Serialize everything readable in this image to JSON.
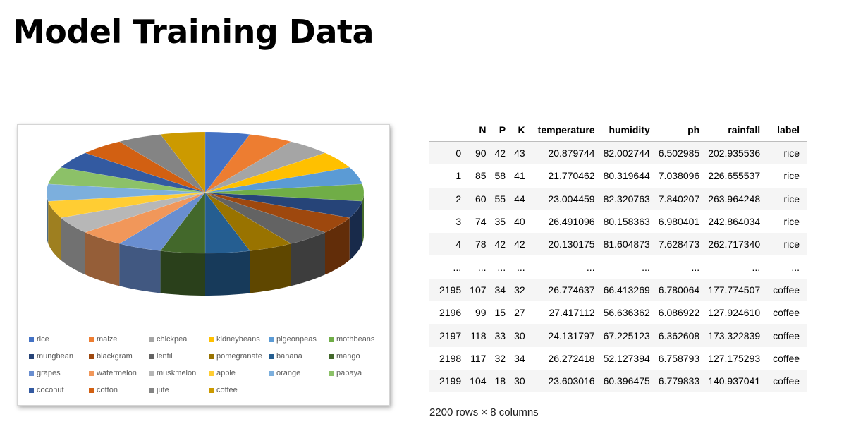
{
  "page": {
    "title": "Model Training Data"
  },
  "legend": {
    "items": [
      {
        "label": "rice",
        "color": "#4472c4"
      },
      {
        "label": "maize",
        "color": "#ed7d31"
      },
      {
        "label": "chickpea",
        "color": "#a5a5a5"
      },
      {
        "label": "kidneybeans",
        "color": "#ffc000"
      },
      {
        "label": "pigeonpeas",
        "color": "#5b9bd5"
      },
      {
        "label": "mothbeans",
        "color": "#70ad47"
      },
      {
        "label": "mungbean",
        "color": "#264478"
      },
      {
        "label": "blackgram",
        "color": "#9e480e"
      },
      {
        "label": "lentil",
        "color": "#636363"
      },
      {
        "label": "pomegranate",
        "color": "#997300"
      },
      {
        "label": "banana",
        "color": "#255e91"
      },
      {
        "label": "mango",
        "color": "#43682b"
      },
      {
        "label": "grapes",
        "color": "#698ed0"
      },
      {
        "label": "watermelon",
        "color": "#f1975a"
      },
      {
        "label": "muskmelon",
        "color": "#b7b7b7"
      },
      {
        "label": "apple",
        "color": "#ffcd33"
      },
      {
        "label": "orange",
        "color": "#7cafdd"
      },
      {
        "label": "papaya",
        "color": "#8cc168"
      },
      {
        "label": "coconut",
        "color": "#335aa1"
      },
      {
        "label": "cotton",
        "color": "#d26012"
      },
      {
        "label": "jute",
        "color": "#848484"
      },
      {
        "label": "coffee",
        "color": "#cc9a00"
      }
    ]
  },
  "chart_data": {
    "type": "pie",
    "style": "3d",
    "categories": [
      "rice",
      "maize",
      "chickpea",
      "kidneybeans",
      "pigeonpeas",
      "mothbeans",
      "mungbean",
      "blackgram",
      "lentil",
      "pomegranate",
      "banana",
      "mango",
      "grapes",
      "watermelon",
      "muskmelon",
      "apple",
      "orange",
      "papaya",
      "coconut",
      "cotton",
      "jute",
      "coffee"
    ],
    "values": [
      100,
      100,
      100,
      100,
      100,
      100,
      100,
      100,
      100,
      100,
      100,
      100,
      100,
      100,
      100,
      100,
      100,
      100,
      100,
      100,
      100,
      100
    ],
    "legend_position": "bottom",
    "title": ""
  },
  "table": {
    "columns": [
      "",
      "N",
      "P",
      "K",
      "temperature",
      "humidity",
      "ph",
      "rainfall",
      "label"
    ],
    "rows": [
      [
        "0",
        "90",
        "42",
        "43",
        "20.879744",
        "82.002744",
        "6.502985",
        "202.935536",
        "rice"
      ],
      [
        "1",
        "85",
        "58",
        "41",
        "21.770462",
        "80.319644",
        "7.038096",
        "226.655537",
        "rice"
      ],
      [
        "2",
        "60",
        "55",
        "44",
        "23.004459",
        "82.320763",
        "7.840207",
        "263.964248",
        "rice"
      ],
      [
        "3",
        "74",
        "35",
        "40",
        "26.491096",
        "80.158363",
        "6.980401",
        "242.864034",
        "rice"
      ],
      [
        "4",
        "78",
        "42",
        "42",
        "20.130175",
        "81.604873",
        "7.628473",
        "262.717340",
        "rice"
      ],
      [
        "...",
        "...",
        "...",
        "...",
        "...",
        "...",
        "...",
        "...",
        "..."
      ],
      [
        "2195",
        "107",
        "34",
        "32",
        "26.774637",
        "66.413269",
        "6.780064",
        "177.774507",
        "coffee"
      ],
      [
        "2196",
        "99",
        "15",
        "27",
        "27.417112",
        "56.636362",
        "6.086922",
        "127.924610",
        "coffee"
      ],
      [
        "2197",
        "118",
        "33",
        "30",
        "24.131797",
        "67.225123",
        "6.362608",
        "173.322839",
        "coffee"
      ],
      [
        "2198",
        "117",
        "32",
        "34",
        "26.272418",
        "52.127394",
        "6.758793",
        "127.175293",
        "coffee"
      ],
      [
        "2199",
        "104",
        "18",
        "30",
        "23.603016",
        "60.396475",
        "6.779833",
        "140.937041",
        "coffee"
      ]
    ],
    "shape": "2200 rows × 8 columns"
  }
}
